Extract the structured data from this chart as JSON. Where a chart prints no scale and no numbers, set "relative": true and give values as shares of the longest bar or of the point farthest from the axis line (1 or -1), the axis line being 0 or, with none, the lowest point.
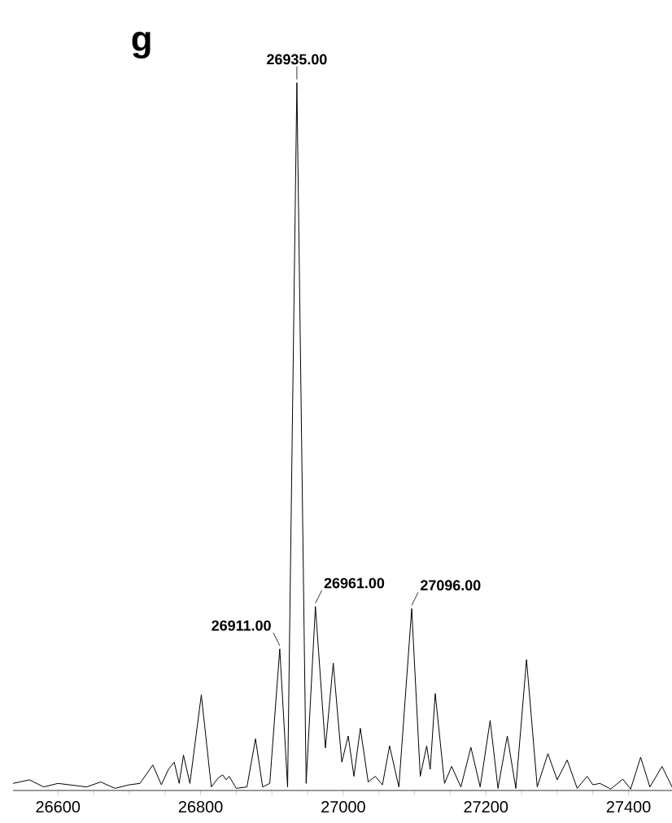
{
  "chart_data": {
    "type": "line",
    "relative": true,
    "xlim": [
      26537,
      27461
    ],
    "xticks": [
      26600,
      26800,
      27000,
      27200,
      27400
    ],
    "grid": false,
    "marker": "none",
    "line_style": "solid",
    "annotations": [
      "g",
      {
        "text": "26935.00",
        "x": 26935,
        "y": 1.0
      },
      {
        "text": "26911.00",
        "x": 26911,
        "y": 0.2
      },
      {
        "text": "26961.00",
        "x": 26961,
        "y": 0.26
      },
      {
        "text": "27096.00",
        "x": 27096,
        "y": 0.257
      }
    ],
    "series": [
      {
        "color": "#000000",
        "x": [
          26537,
          26560,
          26580,
          26600,
          26640,
          26660,
          26680,
          26700,
          26715,
          26733,
          26745,
          26755,
          26763,
          26770,
          26776,
          26785,
          26801,
          26815,
          26825,
          26831,
          26836,
          26840,
          26850,
          26865,
          26877,
          26887,
          26897,
          26911,
          26922,
          26935,
          26948,
          26961,
          26975,
          26986,
          26998,
          27007,
          27015,
          27024,
          27035,
          27045,
          27055,
          27065,
          27078,
          27096,
          27108,
          27117,
          27122,
          27129,
          27142,
          27152,
          27165,
          27179,
          27192,
          27206,
          27217,
          27230,
          27242,
          27257,
          27272,
          27287,
          27300,
          27314,
          27328,
          27342,
          27350,
          27360,
          27375,
          27392,
          27403,
          27417,
          27430,
          27447,
          27461
        ],
        "values": [
          0.01,
          0.015,
          0.005,
          0.01,
          0.005,
          0.012,
          0.003,
          0.008,
          0.01,
          0.036,
          0.008,
          0.03,
          0.04,
          0.01,
          0.05,
          0.01,
          0.135,
          0.005,
          0.018,
          0.022,
          0.015,
          0.02,
          0.003,
          0.005,
          0.073,
          0.005,
          0.01,
          0.2,
          0.005,
          1.0,
          0.01,
          0.26,
          0.06,
          0.18,
          0.04,
          0.077,
          0.02,
          0.088,
          0.012,
          0.02,
          0.008,
          0.063,
          0.005,
          0.257,
          0.02,
          0.063,
          0.03,
          0.137,
          0.01,
          0.034,
          0.005,
          0.061,
          0.005,
          0.099,
          0.003,
          0.077,
          0.003,
          0.185,
          0.005,
          0.052,
          0.015,
          0.043,
          0.003,
          0.02,
          0.008,
          0.01,
          0.002,
          0.016,
          0.002,
          0.047,
          0.005,
          0.034,
          0.005
        ]
      }
    ]
  }
}
